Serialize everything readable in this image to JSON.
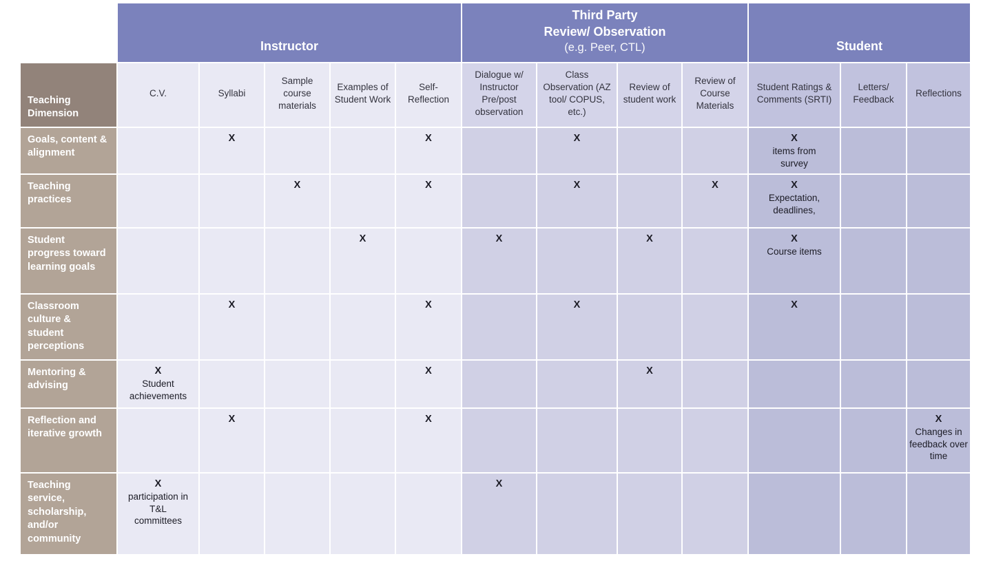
{
  "colors": {
    "group_header_bg": "#7b82bc",
    "group_header_text": "#ffffff",
    "dimension_header_bg": "#92837a",
    "row_header_bg": "#b2a497",
    "row_header_text": "#ffffff",
    "instructor_cell_bg": "#e9e9f4",
    "third_party_header_bg": "#d4d4e9",
    "third_party_cell_bg": "#d0d0e5",
    "student_header_bg": "#c1c2de",
    "student_cell_bg": "#bbbdd9",
    "grid_line": "#ffffff",
    "mark_text": "#1c1c26",
    "header_text": "#33333e"
  },
  "table": {
    "corner_label": "Teaching Dimension",
    "groups": [
      {
        "key": "instructor",
        "title_lines": [
          "Instructor"
        ],
        "subtitle": "",
        "span": 5
      },
      {
        "key": "third_party",
        "title_lines": [
          "Third Party",
          "Review/ Observation"
        ],
        "subtitle": "(e.g. Peer, CTL)",
        "span": 4
      },
      {
        "key": "student",
        "title_lines": [
          "Student"
        ],
        "subtitle": "",
        "span": 3
      }
    ],
    "columns": [
      {
        "label": "C.V.",
        "group": "instructor"
      },
      {
        "label": "Syllabi",
        "group": "instructor"
      },
      {
        "label": "Sample course materials",
        "group": "instructor"
      },
      {
        "label": "Examples of Student Work",
        "group": "instructor"
      },
      {
        "label": "Self-Reflection",
        "group": "instructor"
      },
      {
        "label": "Dialogue w/ Instructor Pre/post observation",
        "group": "third_party"
      },
      {
        "label": "Class Observation (AZ tool/ COPUS, etc.)",
        "group": "third_party"
      },
      {
        "label": "Review of student work",
        "group": "third_party"
      },
      {
        "label": "Review of Course Materials",
        "group": "third_party"
      },
      {
        "label": "Student Ratings & Comments (SRTI)",
        "group": "student"
      },
      {
        "label": "Letters/ Feedback",
        "group": "student"
      },
      {
        "label": "Reflections",
        "group": "student"
      }
    ],
    "rows": [
      {
        "dimension": "Goals, content & alignment",
        "cells": [
          null,
          "X",
          null,
          null,
          "X",
          null,
          "X",
          null,
          null,
          {
            "mark": "X",
            "note": "items from survey"
          },
          null,
          null
        ]
      },
      {
        "dimension": "Teaching practices",
        "cells": [
          null,
          null,
          "X",
          null,
          "X",
          null,
          "X",
          null,
          "X",
          {
            "mark": "X",
            "note": "Expectation, deadlines,"
          },
          null,
          null
        ]
      },
      {
        "dimension": "Student progress toward learning goals",
        "cells": [
          null,
          null,
          null,
          "X",
          null,
          "X",
          null,
          "X",
          null,
          {
            "mark": "X",
            "note": "Course items"
          },
          null,
          null
        ]
      },
      {
        "dimension": "Classroom culture & student perceptions",
        "cells": [
          null,
          "X",
          null,
          null,
          "X",
          null,
          "X",
          null,
          null,
          "X",
          null,
          null
        ]
      },
      {
        "dimension": "Mentoring & advising",
        "cells": [
          {
            "mark": "X",
            "note": "Student achievements"
          },
          null,
          null,
          null,
          "X",
          null,
          null,
          "X",
          null,
          null,
          null,
          null
        ]
      },
      {
        "dimension": "Reflection and iterative growth",
        "cells": [
          null,
          "X",
          null,
          null,
          "X",
          null,
          null,
          null,
          null,
          null,
          null,
          {
            "mark": "X",
            "note": "Changes in feedback over time"
          }
        ]
      },
      {
        "dimension": "Teaching service, scholarship, and/or community",
        "cells": [
          {
            "mark": "X",
            "note": "participation in T&L committees"
          },
          "",
          null,
          null,
          null,
          "X",
          null,
          null,
          null,
          null,
          null,
          null
        ]
      }
    ]
  }
}
